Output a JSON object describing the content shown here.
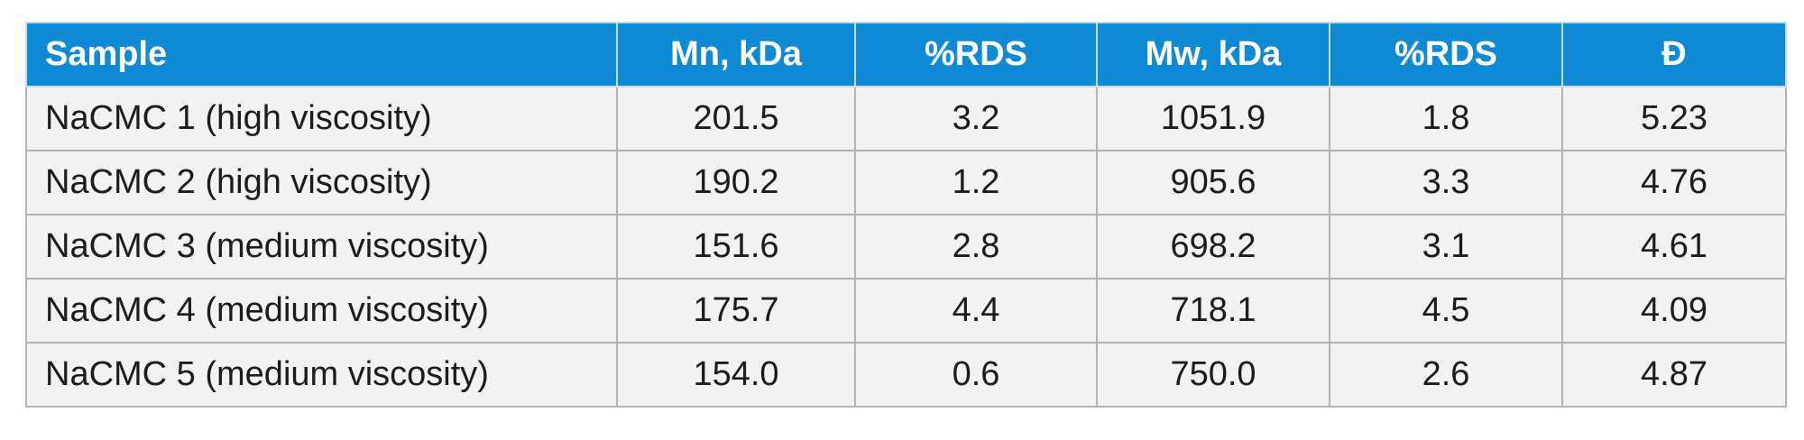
{
  "table": {
    "headers": [
      "Sample",
      "Mn, kDa",
      "%RDS",
      "Mw, kDa",
      "%RDS",
      "Đ"
    ],
    "rows": [
      [
        "NaCMC 1 (high viscosity)",
        "201.5",
        "3.2",
        "1051.9",
        "1.8",
        "5.23"
      ],
      [
        "NaCMC 2 (high viscosity)",
        "190.2",
        "1.2",
        "905.6",
        "3.3",
        "4.76"
      ],
      [
        "NaCMC 3 (medium viscosity)",
        "151.6",
        "2.8",
        "698.2",
        "3.1",
        "4.61"
      ],
      [
        "NaCMC 4 (medium viscosity)",
        "175.7",
        "4.4",
        "718.1",
        "4.5",
        "4.09"
      ],
      [
        "NaCMC 5 (medium viscosity)",
        "154.0",
        "0.6",
        "750.0",
        "2.6",
        "4.87"
      ]
    ]
  },
  "colors": {
    "header_background": "#0f8ad4",
    "header_text": "#ffffff",
    "row_background": "#f2f2f2",
    "border": "#b3b3b3",
    "text": "#1c1c1c"
  }
}
